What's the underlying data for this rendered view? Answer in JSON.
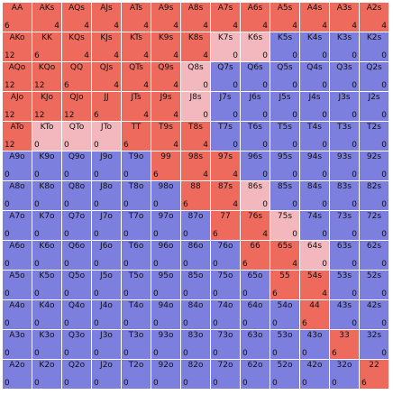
{
  "colors": {
    "raise": "#ee6a5c",
    "mixed": "#f2b8be",
    "fold": "#7d7fde"
  },
  "grid": [
    [
      {
        "hand": "AA",
        "combos": "6",
        "state": "raise"
      },
      {
        "hand": "AKs",
        "combos": "4",
        "state": "raise"
      },
      {
        "hand": "AQs",
        "combos": "4",
        "state": "raise"
      },
      {
        "hand": "AJs",
        "combos": "4",
        "state": "raise"
      },
      {
        "hand": "ATs",
        "combos": "4",
        "state": "raise"
      },
      {
        "hand": "A9s",
        "combos": "4",
        "state": "raise"
      },
      {
        "hand": "A8s",
        "combos": "4",
        "state": "raise"
      },
      {
        "hand": "A7s",
        "combos": "4",
        "state": "raise"
      },
      {
        "hand": "A6s",
        "combos": "4",
        "state": "raise"
      },
      {
        "hand": "A5s",
        "combos": "4",
        "state": "raise"
      },
      {
        "hand": "A4s",
        "combos": "4",
        "state": "raise"
      },
      {
        "hand": "A3s",
        "combos": "4",
        "state": "raise"
      },
      {
        "hand": "A2s",
        "combos": "4",
        "state": "raise"
      }
    ],
    [
      {
        "hand": "AKo",
        "combos": "12",
        "state": "raise"
      },
      {
        "hand": "KK",
        "combos": "6",
        "state": "raise"
      },
      {
        "hand": "KQs",
        "combos": "4",
        "state": "raise"
      },
      {
        "hand": "KJs",
        "combos": "4",
        "state": "raise"
      },
      {
        "hand": "KTs",
        "combos": "4",
        "state": "raise"
      },
      {
        "hand": "K9s",
        "combos": "4",
        "state": "raise"
      },
      {
        "hand": "K8s",
        "combos": "4",
        "state": "raise"
      },
      {
        "hand": "K7s",
        "combos": "0",
        "state": "mixed"
      },
      {
        "hand": "K6s",
        "combos": "0",
        "state": "mixed"
      },
      {
        "hand": "K5s",
        "combos": "0",
        "state": "fold"
      },
      {
        "hand": "K4s",
        "combos": "0",
        "state": "fold"
      },
      {
        "hand": "K3s",
        "combos": "0",
        "state": "fold"
      },
      {
        "hand": "K2s",
        "combos": "0",
        "state": "fold"
      }
    ],
    [
      {
        "hand": "AQo",
        "combos": "12",
        "state": "raise"
      },
      {
        "hand": "KQo",
        "combos": "12",
        "state": "raise"
      },
      {
        "hand": "QQ",
        "combos": "6",
        "state": "raise"
      },
      {
        "hand": "QJs",
        "combos": "4",
        "state": "raise"
      },
      {
        "hand": "QTs",
        "combos": "4",
        "state": "raise"
      },
      {
        "hand": "Q9s",
        "combos": "4",
        "state": "raise"
      },
      {
        "hand": "Q8s",
        "combos": "0",
        "state": "mixed"
      },
      {
        "hand": "Q7s",
        "combos": "0",
        "state": "fold"
      },
      {
        "hand": "Q6s",
        "combos": "0",
        "state": "fold"
      },
      {
        "hand": "Q5s",
        "combos": "0",
        "state": "fold"
      },
      {
        "hand": "Q4s",
        "combos": "0",
        "state": "fold"
      },
      {
        "hand": "Q3s",
        "combos": "0",
        "state": "fold"
      },
      {
        "hand": "Q2s",
        "combos": "0",
        "state": "fold"
      }
    ],
    [
      {
        "hand": "AJo",
        "combos": "12",
        "state": "raise"
      },
      {
        "hand": "KJo",
        "combos": "12",
        "state": "raise"
      },
      {
        "hand": "QJo",
        "combos": "12",
        "state": "raise"
      },
      {
        "hand": "JJ",
        "combos": "6",
        "state": "raise"
      },
      {
        "hand": "JTs",
        "combos": "4",
        "state": "raise"
      },
      {
        "hand": "J9s",
        "combos": "4",
        "state": "raise"
      },
      {
        "hand": "J8s",
        "combos": "0",
        "state": "mixed"
      },
      {
        "hand": "J7s",
        "combos": "0",
        "state": "fold"
      },
      {
        "hand": "J6s",
        "combos": "0",
        "state": "fold"
      },
      {
        "hand": "J5s",
        "combos": "0",
        "state": "fold"
      },
      {
        "hand": "J4s",
        "combos": "0",
        "state": "fold"
      },
      {
        "hand": "J3s",
        "combos": "0",
        "state": "fold"
      },
      {
        "hand": "J2s",
        "combos": "0",
        "state": "fold"
      }
    ],
    [
      {
        "hand": "ATo",
        "combos": "12",
        "state": "raise"
      },
      {
        "hand": "KTo",
        "combos": "0",
        "state": "mixed"
      },
      {
        "hand": "QTo",
        "combos": "0",
        "state": "mixed"
      },
      {
        "hand": "JTo",
        "combos": "0",
        "state": "mixed"
      },
      {
        "hand": "TT",
        "combos": "6",
        "state": "raise"
      },
      {
        "hand": "T9s",
        "combos": "4",
        "state": "raise"
      },
      {
        "hand": "T8s",
        "combos": "4",
        "state": "raise"
      },
      {
        "hand": "T7s",
        "combos": "0",
        "state": "fold"
      },
      {
        "hand": "T6s",
        "combos": "0",
        "state": "fold"
      },
      {
        "hand": "T5s",
        "combos": "0",
        "state": "fold"
      },
      {
        "hand": "T4s",
        "combos": "0",
        "state": "fold"
      },
      {
        "hand": "T3s",
        "combos": "0",
        "state": "fold"
      },
      {
        "hand": "T2s",
        "combos": "0",
        "state": "fold"
      }
    ],
    [
      {
        "hand": "A9o",
        "combos": "0",
        "state": "fold"
      },
      {
        "hand": "K9o",
        "combos": "0",
        "state": "fold"
      },
      {
        "hand": "Q9o",
        "combos": "0",
        "state": "fold"
      },
      {
        "hand": "J9o",
        "combos": "0",
        "state": "fold"
      },
      {
        "hand": "T9o",
        "combos": "0",
        "state": "fold"
      },
      {
        "hand": "99",
        "combos": "6",
        "state": "raise"
      },
      {
        "hand": "98s",
        "combos": "4",
        "state": "raise"
      },
      {
        "hand": "97s",
        "combos": "4",
        "state": "raise"
      },
      {
        "hand": "96s",
        "combos": "0",
        "state": "fold"
      },
      {
        "hand": "95s",
        "combos": "0",
        "state": "fold"
      },
      {
        "hand": "94s",
        "combos": "0",
        "state": "fold"
      },
      {
        "hand": "93s",
        "combos": "0",
        "state": "fold"
      },
      {
        "hand": "92s",
        "combos": "0",
        "state": "fold"
      }
    ],
    [
      {
        "hand": "A8o",
        "combos": "0",
        "state": "fold"
      },
      {
        "hand": "K8o",
        "combos": "0",
        "state": "fold"
      },
      {
        "hand": "Q8o",
        "combos": "0",
        "state": "fold"
      },
      {
        "hand": "J8o",
        "combos": "0",
        "state": "fold"
      },
      {
        "hand": "T8o",
        "combos": "0",
        "state": "fold"
      },
      {
        "hand": "98o",
        "combos": "0",
        "state": "fold"
      },
      {
        "hand": "88",
        "combos": "6",
        "state": "raise"
      },
      {
        "hand": "87s",
        "combos": "4",
        "state": "raise"
      },
      {
        "hand": "86s",
        "combos": "0",
        "state": "mixed"
      },
      {
        "hand": "85s",
        "combos": "0",
        "state": "fold"
      },
      {
        "hand": "84s",
        "combos": "0",
        "state": "fold"
      },
      {
        "hand": "83s",
        "combos": "0",
        "state": "fold"
      },
      {
        "hand": "82s",
        "combos": "0",
        "state": "fold"
      }
    ],
    [
      {
        "hand": "A7o",
        "combos": "0",
        "state": "fold"
      },
      {
        "hand": "K7o",
        "combos": "0",
        "state": "fold"
      },
      {
        "hand": "Q7o",
        "combos": "0",
        "state": "fold"
      },
      {
        "hand": "J7o",
        "combos": "0",
        "state": "fold"
      },
      {
        "hand": "T7o",
        "combos": "0",
        "state": "fold"
      },
      {
        "hand": "97o",
        "combos": "0",
        "state": "fold"
      },
      {
        "hand": "87o",
        "combos": "0",
        "state": "fold"
      },
      {
        "hand": "77",
        "combos": "6",
        "state": "raise"
      },
      {
        "hand": "76s",
        "combos": "4",
        "state": "raise"
      },
      {
        "hand": "75s",
        "combos": "0",
        "state": "mixed"
      },
      {
        "hand": "74s",
        "combos": "0",
        "state": "fold"
      },
      {
        "hand": "73s",
        "combos": "0",
        "state": "fold"
      },
      {
        "hand": "72s",
        "combos": "0",
        "state": "fold"
      }
    ],
    [
      {
        "hand": "A6o",
        "combos": "0",
        "state": "fold"
      },
      {
        "hand": "K6o",
        "combos": "0",
        "state": "fold"
      },
      {
        "hand": "Q6o",
        "combos": "0",
        "state": "fold"
      },
      {
        "hand": "J6o",
        "combos": "0",
        "state": "fold"
      },
      {
        "hand": "T6o",
        "combos": "0",
        "state": "fold"
      },
      {
        "hand": "96o",
        "combos": "0",
        "state": "fold"
      },
      {
        "hand": "86o",
        "combos": "0",
        "state": "fold"
      },
      {
        "hand": "76o",
        "combos": "0",
        "state": "fold"
      },
      {
        "hand": "66",
        "combos": "6",
        "state": "raise"
      },
      {
        "hand": "65s",
        "combos": "4",
        "state": "raise"
      },
      {
        "hand": "64s",
        "combos": "0",
        "state": "mixed"
      },
      {
        "hand": "63s",
        "combos": "0",
        "state": "fold"
      },
      {
        "hand": "62s",
        "combos": "0",
        "state": "fold"
      }
    ],
    [
      {
        "hand": "A5o",
        "combos": "0",
        "state": "fold"
      },
      {
        "hand": "K5o",
        "combos": "0",
        "state": "fold"
      },
      {
        "hand": "Q5o",
        "combos": "0",
        "state": "fold"
      },
      {
        "hand": "J5o",
        "combos": "0",
        "state": "fold"
      },
      {
        "hand": "T5o",
        "combos": "0",
        "state": "fold"
      },
      {
        "hand": "95o",
        "combos": "0",
        "state": "fold"
      },
      {
        "hand": "85o",
        "combos": "0",
        "state": "fold"
      },
      {
        "hand": "75o",
        "combos": "0",
        "state": "fold"
      },
      {
        "hand": "65o",
        "combos": "0",
        "state": "fold"
      },
      {
        "hand": "55",
        "combos": "6",
        "state": "raise"
      },
      {
        "hand": "54s",
        "combos": "4",
        "state": "raise"
      },
      {
        "hand": "53s",
        "combos": "0",
        "state": "fold"
      },
      {
        "hand": "52s",
        "combos": "0",
        "state": "fold"
      }
    ],
    [
      {
        "hand": "A4o",
        "combos": "0",
        "state": "fold"
      },
      {
        "hand": "K4o",
        "combos": "0",
        "state": "fold"
      },
      {
        "hand": "Q4o",
        "combos": "0",
        "state": "fold"
      },
      {
        "hand": "J4o",
        "combos": "0",
        "state": "fold"
      },
      {
        "hand": "T4o",
        "combos": "0",
        "state": "fold"
      },
      {
        "hand": "94o",
        "combos": "0",
        "state": "fold"
      },
      {
        "hand": "84o",
        "combos": "0",
        "state": "fold"
      },
      {
        "hand": "74o",
        "combos": "0",
        "state": "fold"
      },
      {
        "hand": "64o",
        "combos": "0",
        "state": "fold"
      },
      {
        "hand": "54o",
        "combos": "0",
        "state": "fold"
      },
      {
        "hand": "44",
        "combos": "6",
        "state": "raise"
      },
      {
        "hand": "43s",
        "combos": "0",
        "state": "fold"
      },
      {
        "hand": "42s",
        "combos": "0",
        "state": "fold"
      }
    ],
    [
      {
        "hand": "A3o",
        "combos": "0",
        "state": "fold"
      },
      {
        "hand": "K3o",
        "combos": "0",
        "state": "fold"
      },
      {
        "hand": "Q3o",
        "combos": "0",
        "state": "fold"
      },
      {
        "hand": "J3o",
        "combos": "0",
        "state": "fold"
      },
      {
        "hand": "T3o",
        "combos": "0",
        "state": "fold"
      },
      {
        "hand": "93o",
        "combos": "0",
        "state": "fold"
      },
      {
        "hand": "83o",
        "combos": "0",
        "state": "fold"
      },
      {
        "hand": "73o",
        "combos": "0",
        "state": "fold"
      },
      {
        "hand": "63o",
        "combos": "0",
        "state": "fold"
      },
      {
        "hand": "53o",
        "combos": "0",
        "state": "fold"
      },
      {
        "hand": "43o",
        "combos": "0",
        "state": "fold"
      },
      {
        "hand": "33",
        "combos": "6",
        "state": "raise"
      },
      {
        "hand": "32s",
        "combos": "0",
        "state": "fold"
      }
    ],
    [
      {
        "hand": "A2o",
        "combos": "0",
        "state": "fold"
      },
      {
        "hand": "K2o",
        "combos": "0",
        "state": "fold"
      },
      {
        "hand": "Q2o",
        "combos": "0",
        "state": "fold"
      },
      {
        "hand": "J2o",
        "combos": "0",
        "state": "fold"
      },
      {
        "hand": "T2o",
        "combos": "0",
        "state": "fold"
      },
      {
        "hand": "92o",
        "combos": "0",
        "state": "fold"
      },
      {
        "hand": "82o",
        "combos": "0",
        "state": "fold"
      },
      {
        "hand": "72o",
        "combos": "0",
        "state": "fold"
      },
      {
        "hand": "62o",
        "combos": "0",
        "state": "fold"
      },
      {
        "hand": "52o",
        "combos": "0",
        "state": "fold"
      },
      {
        "hand": "42o",
        "combos": "0",
        "state": "fold"
      },
      {
        "hand": "32o",
        "combos": "0",
        "state": "fold"
      },
      {
        "hand": "22",
        "combos": "6",
        "state": "raise"
      }
    ]
  ]
}
